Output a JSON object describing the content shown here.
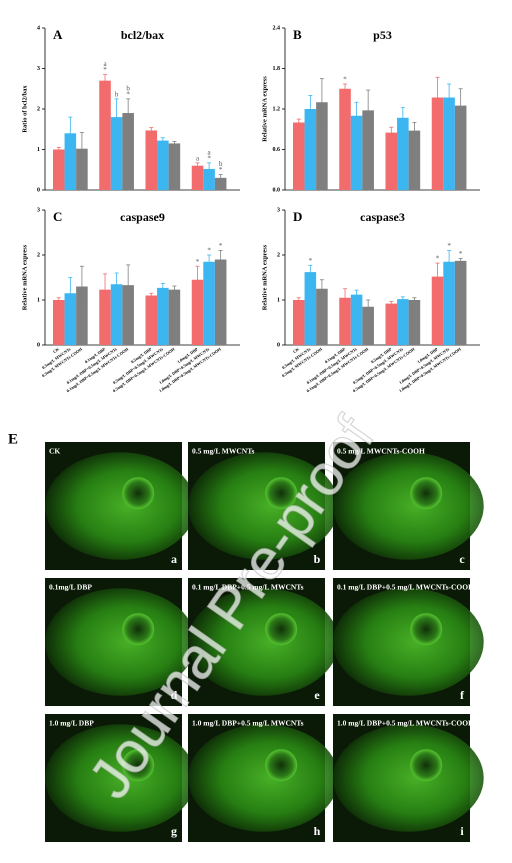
{
  "chart_data": [
    {
      "type": "bar",
      "panel": "A",
      "title": "bcl2/bax",
      "ylabel": "Ratio of bcl2/bax",
      "categories": [
        null,
        null,
        null,
        null,
        null,
        null,
        null,
        null,
        null,
        null,
        null,
        null
      ],
      "values": [
        1.0,
        1.4,
        1.02,
        2.7,
        1.8,
        1.9,
        1.47,
        1.22,
        1.15,
        0.6,
        0.52,
        0.3
      ],
      "errors": [
        0.05,
        0.4,
        0.4,
        0.15,
        0.45,
        0.35,
        0.07,
        0.07,
        0.05,
        0.07,
        0.15,
        0.08
      ],
      "colors": [
        "#f26b6d",
        "#3cb6f0",
        "#7f7f7f",
        "#f26b6d",
        "#3cb6f0",
        "#7f7f7f",
        "#f26b6d",
        "#3cb6f0",
        "#7f7f7f",
        "#f26b6d",
        "#3cb6f0",
        "#7f7f7f"
      ],
      "letters": [
        null,
        null,
        null,
        "a",
        "b",
        "b",
        null,
        null,
        null,
        "a",
        "a",
        "b"
      ],
      "stars": [
        null,
        null,
        null,
        "*",
        null,
        "*",
        null,
        null,
        null,
        null,
        "*",
        "*"
      ],
      "ylim": [
        0,
        4
      ],
      "yticks": [
        0,
        1,
        2,
        3,
        4
      ]
    },
    {
      "type": "bar",
      "panel": "B",
      "title": "p53",
      "ylabel": "Relative mRNA express",
      "categories": [
        null,
        null,
        null,
        null,
        null,
        null,
        null,
        null,
        null,
        null,
        null,
        null
      ],
      "values": [
        1.0,
        1.2,
        1.3,
        1.5,
        1.1,
        1.18,
        0.85,
        1.07,
        0.88,
        1.37,
        1.37,
        1.25
      ],
      "errors": [
        0.05,
        0.2,
        0.35,
        0.07,
        0.2,
        0.3,
        0.08,
        0.15,
        0.12,
        0.3,
        0.2,
        0.25
      ],
      "colors": [
        "#f26b6d",
        "#3cb6f0",
        "#7f7f7f",
        "#f26b6d",
        "#3cb6f0",
        "#7f7f7f",
        "#f26b6d",
        "#3cb6f0",
        "#7f7f7f",
        "#f26b6d",
        "#3cb6f0",
        "#7f7f7f"
      ],
      "letters": [
        null,
        null,
        null,
        null,
        null,
        null,
        null,
        null,
        null,
        null,
        null,
        null
      ],
      "stars": [
        null,
        null,
        null,
        "*",
        null,
        null,
        null,
        null,
        null,
        null,
        null,
        null
      ],
      "ylim": [
        0,
        2.4
      ],
      "yticks": [
        {
          "value": 0,
          "label": "0.0"
        },
        0.6,
        1.2,
        1.8,
        2.4
      ]
    },
    {
      "type": "bar",
      "panel": "C",
      "title": "caspase9",
      "ylabel": "Relative mRNA express",
      "categories": [
        "CK",
        "0.5mg/L MWCNTs",
        "0.5mg/L MWCNTs-COOH",
        "0.1mg/L DBP",
        "0.1mg/L DBP+0.5mg/L MWCNTs",
        "0.1mg/L DBP+0.5mg/L MWCNTs-COOH",
        "0.5mg/L DBP",
        "0.5mg/L DBP+0.5mg/L MWCNTs",
        "0.5mg/L DBP+0.5mg/L MWCNTs-COOH",
        "1.0mg/L DBP",
        "1.0mg/L DBP+0.5mg/L MWCNTs",
        "1.0mg/L DBP+0.5mg/L MWCNTs-COOH"
      ],
      "values": [
        1.0,
        1.15,
        1.3,
        1.23,
        1.35,
        1.33,
        1.1,
        1.27,
        1.23,
        1.45,
        1.85,
        1.9
      ],
      "errors": [
        0.05,
        0.35,
        0.45,
        0.35,
        0.25,
        0.45,
        0.05,
        0.1,
        0.08,
        0.3,
        0.15,
        0.2
      ],
      "colors": [
        "#f26b6d",
        "#3cb6f0",
        "#7f7f7f",
        "#f26b6d",
        "#3cb6f0",
        "#7f7f7f",
        "#f26b6d",
        "#3cb6f0",
        "#7f7f7f",
        "#f26b6d",
        "#3cb6f0",
        "#7f7f7f"
      ],
      "letters": [
        null,
        null,
        null,
        null,
        null,
        null,
        null,
        null,
        null,
        null,
        null,
        null
      ],
      "stars": [
        null,
        null,
        null,
        null,
        null,
        null,
        null,
        null,
        null,
        "*",
        "*",
        "*"
      ],
      "ylim": [
        0,
        3
      ],
      "yticks": [
        0,
        1,
        2,
        3
      ]
    },
    {
      "type": "bar",
      "panel": "D",
      "title": "caspase3",
      "ylabel": "Relative mRNA express",
      "categories": [
        "CK",
        "0.5mg/L MWCNTs",
        "0.5mg/L MWCNTs-COOH",
        "0.1mg/L DBP",
        "0.1mg/L DBP+0.5mg/L MWCNTs",
        "0.1mg/L DBP+0.5mg/L MWCNTs-COOH",
        "0.5mg/L DBP",
        "0.5mg/L DBP+0.5mg/L MWCNTs",
        "0.5mg/L DBP+0.5mg/L MWCNTs-COOH",
        "1.0mg/L DBP",
        "1.0mg/L DBP+0.5mg/L MWCNTs",
        "1.0mg/L DBP+0.5mg/L MWCNTs-COOH"
      ],
      "values": [
        1.0,
        1.62,
        1.25,
        1.05,
        1.12,
        0.85,
        0.92,
        1.02,
        1.0,
        1.52,
        1.85,
        1.87
      ],
      "errors": [
        0.05,
        0.15,
        0.2,
        0.2,
        0.1,
        0.15,
        0.05,
        0.05,
        0.05,
        0.3,
        0.25,
        0.05
      ],
      "colors": [
        "#f26b6d",
        "#3cb6f0",
        "#7f7f7f",
        "#f26b6d",
        "#3cb6f0",
        "#7f7f7f",
        "#f26b6d",
        "#3cb6f0",
        "#7f7f7f",
        "#f26b6d",
        "#3cb6f0",
        "#7f7f7f"
      ],
      "letters": [
        null,
        null,
        null,
        null,
        null,
        null,
        null,
        null,
        null,
        null,
        null,
        null
      ],
      "stars": [
        null,
        "*",
        null,
        null,
        null,
        null,
        null,
        null,
        null,
        "*",
        "*",
        "*"
      ],
      "ylim": [
        0,
        3
      ],
      "yticks": [
        0,
        1,
        2,
        3
      ]
    }
  ],
  "figure_e": {
    "label": "E",
    "panels": [
      {
        "caption": "CK",
        "letter": "a"
      },
      {
        "caption": "0.5 mg/L MWCNTs",
        "letter": "b"
      },
      {
        "caption": "0.5 mg/L MWCNTs-COOH",
        "letter": "c"
      },
      {
        "caption": "0.1mg/L DBP",
        "letter": "d"
      },
      {
        "caption": "0.1 mg/L DBP+0.5 mg/L MWCNTs",
        "letter": "e"
      },
      {
        "caption": "0.1 mg/L DBP+0.5 mg/L MWCNTs-COOH",
        "letter": "f"
      },
      {
        "caption": "1.0 mg/L DBP",
        "letter": "g"
      },
      {
        "caption": "1.0 mg/L DBP+0.5 mg/L MWCNTs",
        "letter": "h"
      },
      {
        "caption": "1.0 mg/L DBP+0.5 mg/L MWCNTs-COOH",
        "letter": "i"
      }
    ]
  },
  "watermark": "Journal Pre-proof"
}
